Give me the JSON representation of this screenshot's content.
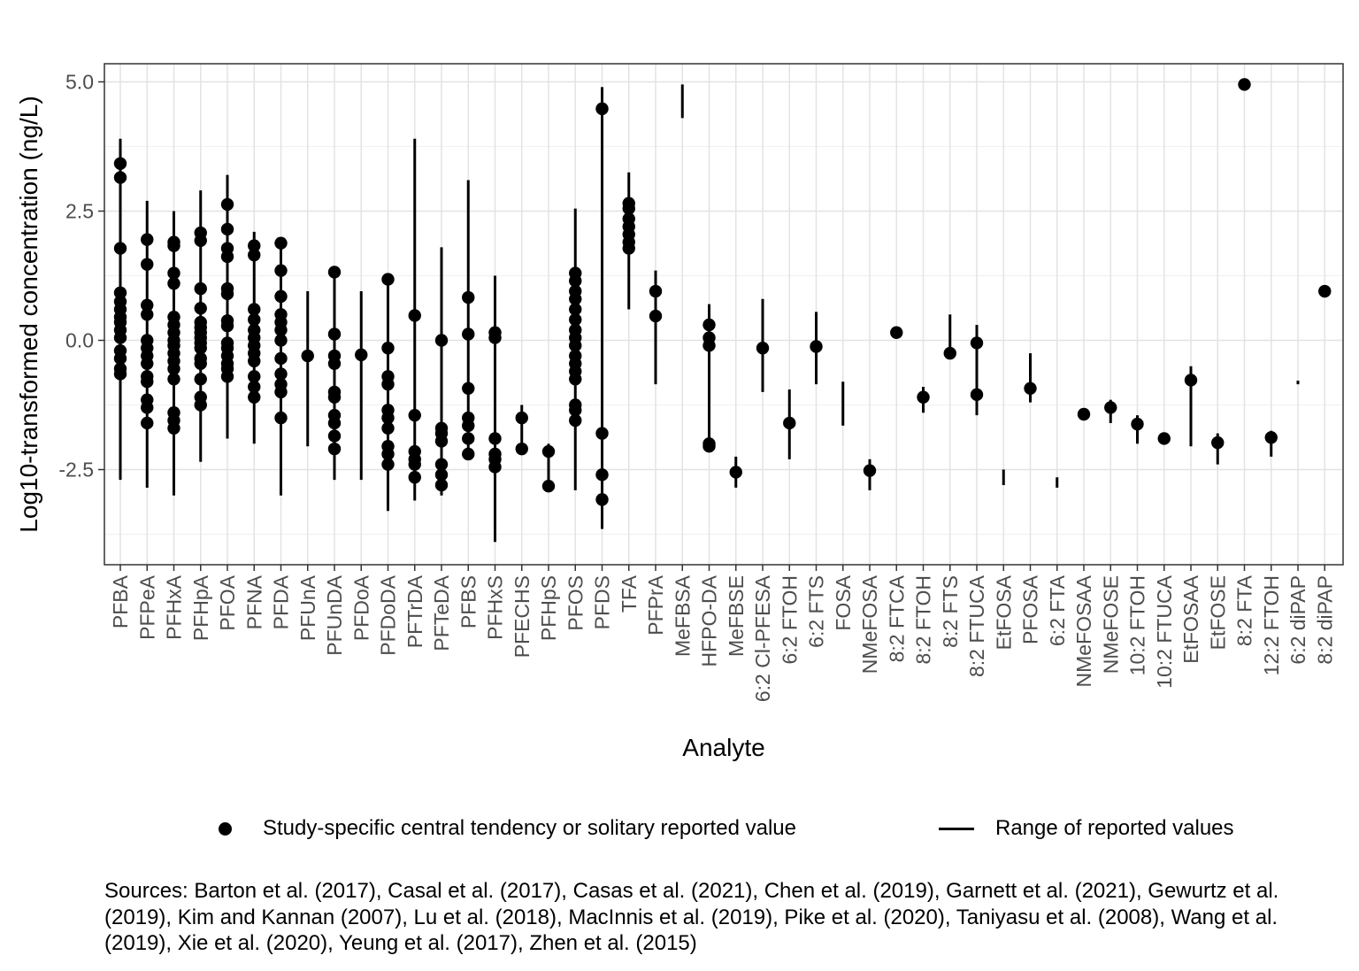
{
  "chart_data": {
    "type": "scatter",
    "title": "",
    "xlabel": "Analyte",
    "ylabel": "Log10-transformed concentration (ng/L)",
    "ylim": [
      -4.3,
      5.4
    ],
    "yticks": [
      5.0,
      2.5,
      0.0,
      -2.5
    ],
    "ytick_labels": [
      "5.0",
      "2.5",
      "0.0",
      "-2.5"
    ],
    "grid": true,
    "legend_position": "bottom",
    "series": [
      {
        "name": "Study-specific central tendency or solitary reported value",
        "marker": "point"
      },
      {
        "name": "Range of reported values",
        "marker": "line"
      }
    ],
    "categories": [
      "PFBA",
      "PFPeA",
      "PFHxA",
      "PFHpA",
      "PFOA",
      "PFNA",
      "PFDA",
      "PFUnA",
      "PFUnDA",
      "PFDoA",
      "PFDoDA",
      "PFTrDA",
      "PFTeDA",
      "PFBS",
      "PFHxS",
      "PFECHS",
      "PFHpS",
      "PFOS",
      "PFDS",
      "TFA",
      "PFPrA",
      "MeFBSA",
      "HFPO-DA",
      "MeFBSE",
      "6:2 Cl-PFESA",
      "6:2 FTOH",
      "6:2 FTS",
      "FOSA",
      "NMeFOSA",
      "8:2 FTCA",
      "8:2 FTOH",
      "8:2 FTS",
      "8:2 FTUCA",
      "EtFOSA",
      "PFOSA",
      "6:2 FTA",
      "NMeFOSAA",
      "NMeFOSE",
      "10:2 FTOH",
      "10:2 FTUCA",
      "EtFOSAA",
      "EtFOSE",
      "8:2 FTA",
      "12:2 FTOH",
      "6:2 diPAP",
      "8:2 diPAP"
    ],
    "ranges": [
      [
        -2.7,
        3.9
      ],
      [
        -2.85,
        2.7
      ],
      [
        -3.0,
        2.5
      ],
      [
        -2.35,
        2.9
      ],
      [
        -1.9,
        3.2
      ],
      [
        -2.0,
        2.1
      ],
      [
        -3.0,
        1.9
      ],
      [
        -2.05,
        0.95
      ],
      [
        -2.7,
        1.35
      ],
      [
        -2.7,
        0.95
      ],
      [
        -3.3,
        1.2
      ],
      [
        -3.1,
        3.9
      ],
      [
        -3.0,
        1.8
      ],
      [
        -2.2,
        3.1
      ],
      [
        -3.9,
        1.25
      ],
      [
        -2.1,
        -1.25
      ],
      [
        -2.85,
        -2.0
      ],
      [
        -2.9,
        2.55
      ],
      [
        -3.65,
        4.9
      ],
      [
        0.6,
        3.25
      ],
      [
        -0.85,
        1.35
      ],
      [
        4.3,
        4.95
      ],
      [
        -2.15,
        0.7
      ],
      [
        -2.85,
        -2.25
      ],
      [
        -1.0,
        0.8
      ],
      [
        -2.3,
        -0.95
      ],
      [
        -0.85,
        0.55
      ],
      [
        -1.65,
        -0.8
      ],
      [
        -2.9,
        -2.3
      ],
      [
        0.1,
        0.25
      ],
      [
        -1.4,
        -0.9
      ],
      [
        -0.35,
        0.5
      ],
      [
        -1.45,
        0.3
      ],
      [
        -2.8,
        -2.5
      ],
      [
        -1.2,
        -0.25
      ],
      [
        -2.85,
        -2.65
      ],
      [
        -1.5,
        -1.35
      ],
      [
        -1.6,
        -1.15
      ],
      [
        -2.0,
        -1.45
      ],
      [
        -1.95,
        -1.85
      ],
      [
        -2.05,
        -0.5
      ],
      [
        -2.4,
        -1.8
      ],
      [
        4.9,
        5.0
      ],
      [
        -2.25,
        -1.75
      ],
      [
        -0.85,
        -0.78
      ],
      [
        0.9,
        1.05
      ]
    ],
    "points": [
      [
        3.42,
        3.15,
        1.78,
        0.92,
        0.75,
        0.6,
        0.45,
        0.35,
        0.2,
        0.05,
        -0.2,
        -0.35,
        -0.55,
        -0.65
      ],
      [
        1.95,
        1.47,
        0.68,
        0.5,
        0.0,
        -0.15,
        -0.3,
        -0.45,
        -0.7,
        -0.8,
        -1.15,
        -1.3,
        -1.6
      ],
      [
        1.9,
        1.83,
        1.3,
        1.1,
        0.45,
        0.3,
        0.15,
        0.0,
        -0.1,
        -0.25,
        -0.4,
        -0.55,
        -0.75,
        -1.4,
        -1.55,
        -1.7
      ],
      [
        2.08,
        1.93,
        1.0,
        0.62,
        0.35,
        0.25,
        0.15,
        0.05,
        -0.05,
        -0.15,
        -0.35,
        -0.45,
        -0.75,
        -1.1,
        -1.25
      ],
      [
        2.63,
        2.15,
        1.78,
        1.62,
        1.0,
        0.9,
        0.38,
        0.28,
        -0.05,
        -0.15,
        -0.3,
        -0.45,
        -0.55,
        -0.7
      ],
      [
        1.83,
        1.65,
        0.6,
        0.4,
        0.2,
        0.05,
        -0.1,
        -0.25,
        -0.4,
        -0.7,
        -0.9,
        -1.1
      ],
      [
        1.88,
        1.35,
        0.85,
        0.5,
        0.35,
        0.2,
        0.0,
        -0.35,
        -0.65,
        -0.85,
        -1.0,
        -1.5
      ],
      [
        -0.3
      ],
      [
        1.32,
        0.12,
        -0.3,
        -0.45,
        -1.0,
        -1.1,
        -1.45,
        -1.6,
        -1.85,
        -2.1
      ],
      [
        -0.28
      ],
      [
        1.18,
        -0.15,
        -0.7,
        -0.85,
        -1.35,
        -1.5,
        -1.7,
        -2.05,
        -2.2,
        -2.4
      ],
      [
        0.48,
        -1.45,
        -2.15,
        -2.3,
        -2.4,
        -2.65
      ],
      [
        0.0,
        -1.7,
        -1.8,
        -1.95,
        -2.4,
        -2.6,
        -2.8
      ],
      [
        0.83,
        0.12,
        -0.93,
        -1.5,
        -1.65,
        -1.9,
        -2.2
      ],
      [
        0.15,
        0.05,
        -1.9,
        -2.2,
        -2.3,
        -2.45
      ],
      [
        -1.5,
        -2.1
      ],
      [
        -2.15,
        -2.82
      ],
      [
        1.3,
        1.15,
        0.95,
        0.8,
        0.6,
        0.4,
        0.2,
        0.05,
        -0.1,
        -0.3,
        -0.45,
        -0.6,
        -0.75,
        -1.25,
        -1.35,
        -1.55
      ],
      [
        4.48,
        -1.8,
        -2.6,
        -3.08
      ],
      [
        2.65,
        2.55,
        2.35,
        2.2,
        2.05,
        1.9,
        1.78
      ],
      [
        0.95,
        0.47
      ],
      [],
      [
        0.3,
        0.05,
        -0.1,
        -2.0,
        -2.05
      ],
      [
        -2.55
      ],
      [
        -0.15
      ],
      [
        -1.6
      ],
      [
        -0.12
      ],
      [],
      [
        -2.52
      ],
      [
        0.15
      ],
      [
        -1.1
      ],
      [
        -0.25
      ],
      [
        -0.05,
        -1.05
      ],
      [],
      [
        -0.93
      ],
      [],
      [
        -1.43
      ],
      [
        -1.3
      ],
      [
        -1.62
      ],
      [
        -1.9
      ],
      [
        -0.77
      ],
      [
        -1.98
      ],
      [
        4.95
      ],
      [
        -1.88
      ],
      [],
      [
        0.95
      ]
    ]
  },
  "legend": {
    "point_label": "Study-specific central tendency or solitary reported value",
    "line_label": "Range of reported values"
  },
  "sources": "Sources: Barton et al. (2017), Casal et al. (2017), Casas et al. (2021), Chen et al. (2019), Garnett et al. (2021), Gewurtz et al. (2019), Kim and Kannan (2007), Lu et al. (2018), MacInnis et al. (2019), Pike et al. (2020), Taniyasu et al. (2008), Wang et al. (2019), Xie et al. (2020), Yeung et al. (2017), Zhen et al. (2015)"
}
